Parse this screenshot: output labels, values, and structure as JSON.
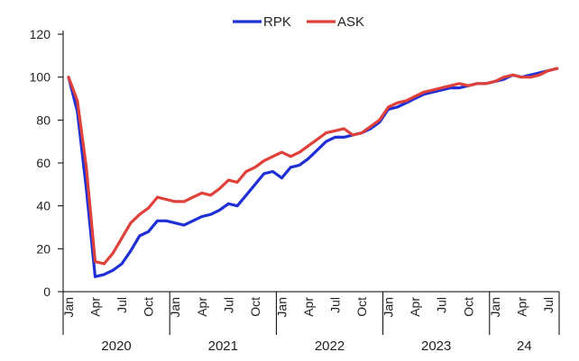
{
  "chart_data": {
    "type": "line",
    "title": "",
    "xlabel": "",
    "ylabel": "",
    "ylim": [
      0,
      120
    ],
    "yticks": [
      0,
      20,
      40,
      60,
      80,
      100,
      120
    ],
    "grid": false,
    "legend_position": "top-center",
    "x": [
      "2020-01",
      "2020-02",
      "2020-03",
      "2020-04",
      "2020-05",
      "2020-06",
      "2020-07",
      "2020-08",
      "2020-09",
      "2020-10",
      "2020-11",
      "2020-12",
      "2021-01",
      "2021-02",
      "2021-03",
      "2021-04",
      "2021-05",
      "2021-06",
      "2021-07",
      "2021-08",
      "2021-09",
      "2021-10",
      "2021-11",
      "2021-12",
      "2022-01",
      "2022-02",
      "2022-03",
      "2022-04",
      "2022-05",
      "2022-06",
      "2022-07",
      "2022-08",
      "2022-09",
      "2022-10",
      "2022-11",
      "2022-12",
      "2023-01",
      "2023-02",
      "2023-03",
      "2023-04",
      "2023-05",
      "2023-06",
      "2023-07",
      "2023-08",
      "2023-09",
      "2023-10",
      "2023-11",
      "2023-12",
      "2024-01",
      "2024-02",
      "2024-03",
      "2024-04",
      "2024-05",
      "2024-06",
      "2024-07",
      "2024-08"
    ],
    "month_tick_labels": [
      "Jan",
      "Apr",
      "Jul",
      "Oct",
      "Jan",
      "Apr",
      "Jul",
      "Oct",
      "Jan",
      "Apr",
      "Jul",
      "Oct",
      "Jan",
      "Apr",
      "Jul",
      "Oct",
      "Jan",
      "Apr",
      "Jul"
    ],
    "year_labels": [
      "2020",
      "2021",
      "2022",
      "2023",
      "24"
    ],
    "series": [
      {
        "name": "RPK",
        "color": "#1f2fd6",
        "values": [
          100,
          84,
          48,
          7,
          8,
          10,
          13,
          19,
          26,
          28,
          33,
          33,
          32,
          31,
          33,
          35,
          36,
          38,
          41,
          40,
          45,
          50,
          55,
          56,
          53,
          58,
          59,
          62,
          66,
          70,
          72,
          72,
          73,
          74,
          76,
          79,
          85,
          86,
          88,
          90,
          92,
          93,
          94,
          95,
          95,
          96,
          97,
          97,
          98,
          99,
          101,
          100,
          101,
          102,
          103,
          104
        ]
      },
      {
        "name": "ASK",
        "color": "#e0403a",
        "values": [
          100,
          89,
          58,
          14,
          13,
          18,
          25,
          32,
          36,
          39,
          44,
          43,
          42,
          42,
          44,
          46,
          45,
          48,
          52,
          51,
          56,
          58,
          61,
          63,
          65,
          63,
          65,
          68,
          71,
          74,
          75,
          76,
          73,
          74,
          77,
          80,
          86,
          88,
          89,
          91,
          93,
          94,
          95,
          96,
          97,
          96,
          97,
          97,
          98,
          100,
          101,
          100,
          100,
          101,
          103,
          104
        ]
      }
    ]
  }
}
